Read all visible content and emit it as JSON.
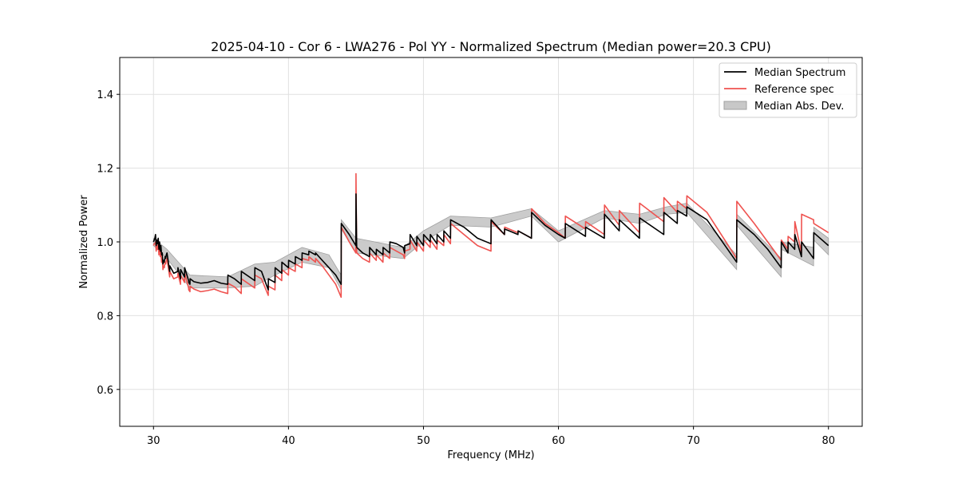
{
  "chart_data": {
    "type": "line",
    "title": "2025-04-10 - Cor 6 - LWA276 - Pol YY - Normalized Spectrum (Median power=20.3 CPU)",
    "xlabel": "Frequency (MHz)",
    "ylabel": "Normalized Power",
    "xlim": [
      27.5,
      82.5
    ],
    "ylim": [
      0.5,
      1.5
    ],
    "xticks": [
      30,
      40,
      50,
      60,
      70,
      80
    ],
    "xtick_labels": [
      "30",
      "40",
      "50",
      "60",
      "70",
      "80"
    ],
    "yticks": [
      0.6,
      0.8,
      1.0,
      1.2,
      1.4
    ],
    "ytick_labels": [
      "0.6",
      "0.8",
      "1.0",
      "1.2",
      "1.4"
    ],
    "grid": true,
    "legend_position": "top-right",
    "legend": {
      "median": "Median Spectrum",
      "reference": "Reference spec",
      "mad": "Median Abs. Dev."
    },
    "colors": {
      "median": "#000000",
      "reference": "#ef5350",
      "mad_fill": "#c8c8c8",
      "mad_edge": "#a0a0a0",
      "grid": "#e0e0e0"
    },
    "series": [
      {
        "name": "Median Spectrum",
        "x": [
          30.0,
          30.05,
          30.1,
          30.15,
          30.2,
          30.25,
          30.3,
          30.35,
          30.4,
          30.45,
          30.5,
          30.55,
          30.6,
          30.65,
          30.7,
          30.75,
          30.8,
          30.85,
          30.9,
          30.95,
          31.0,
          31.2,
          31.21,
          31.5,
          31.8,
          31.81,
          32.0,
          32.01,
          32.3,
          32.31,
          32.6,
          32.61,
          32.7,
          32.71,
          33.0,
          33.5,
          34.0,
          34.5,
          35.0,
          35.5,
          35.51,
          36.0,
          36.5,
          36.51,
          37.5,
          37.51,
          38.0,
          38.5,
          38.51,
          39.0,
          39.01,
          39.5,
          39.51,
          40.0,
          40.01,
          40.5,
          40.51,
          41.0,
          41.01,
          41.5,
          41.51,
          42.0,
          42.01,
          42.5,
          43.0,
          43.5,
          43.9,
          43.91,
          44.5,
          44.99,
          45.0,
          45.05,
          45.06,
          45.5,
          46.0,
          46.01,
          46.5,
          46.51,
          47.0,
          47.01,
          47.5,
          47.51,
          48.0,
          48.5,
          48.6,
          48.61,
          49.0,
          49.01,
          49.5,
          49.51,
          50.0,
          50.01,
          50.5,
          50.51,
          51.0,
          51.01,
          51.5,
          51.51,
          52.0,
          52.01,
          53.0,
          54.0,
          55.0,
          55.01,
          56.0,
          56.01,
          57.0,
          57.01,
          58.0,
          58.01,
          59.0,
          60.0,
          60.5,
          60.51,
          62.0,
          62.01,
          63.4,
          63.41,
          64.5,
          64.51,
          66.0,
          66.01,
          67.8,
          67.81,
          68.8,
          68.81,
          69.5,
          69.51,
          71.0,
          73.2,
          73.21,
          74.5,
          75.5,
          76.5,
          76.51,
          77.0,
          77.01,
          77.5,
          77.51,
          78.0,
          78.01,
          78.9,
          78.91,
          80.0
        ],
        "values": [
          1.0,
          1.005,
          1.01,
          1.02,
          0.99,
          1.005,
          0.995,
          1.01,
          0.98,
          1.0,
          0.975,
          0.99,
          0.965,
          0.97,
          0.94,
          0.95,
          0.945,
          0.96,
          0.955,
          0.965,
          0.97,
          0.92,
          0.935,
          0.915,
          0.92,
          0.93,
          0.9,
          0.925,
          0.905,
          0.93,
          0.895,
          0.89,
          0.885,
          0.9,
          0.892,
          0.888,
          0.89,
          0.895,
          0.888,
          0.885,
          0.91,
          0.9,
          0.885,
          0.92,
          0.895,
          0.93,
          0.92,
          0.87,
          0.9,
          0.89,
          0.93,
          0.915,
          0.945,
          0.93,
          0.95,
          0.94,
          0.96,
          0.95,
          0.97,
          0.965,
          0.975,
          0.965,
          0.97,
          0.95,
          0.93,
          0.91,
          0.885,
          1.05,
          1.02,
          0.99,
          1.13,
          0.99,
          0.985,
          0.97,
          0.96,
          0.985,
          0.965,
          0.98,
          0.965,
          0.985,
          0.97,
          1.0,
          0.995,
          0.985,
          0.97,
          0.99,
          0.995,
          1.02,
          0.99,
          1.015,
          0.99,
          1.02,
          1.0,
          1.02,
          0.995,
          1.02,
          1.0,
          1.03,
          1.01,
          1.06,
          1.04,
          1.01,
          0.995,
          1.06,
          1.02,
          1.035,
          1.02,
          1.03,
          1.01,
          1.08,
          1.045,
          1.02,
          1.01,
          1.05,
          1.015,
          1.04,
          1.01,
          1.075,
          1.03,
          1.06,
          1.01,
          1.065,
          1.02,
          1.08,
          1.05,
          1.085,
          1.07,
          1.095,
          1.06,
          0.945,
          1.06,
          1.02,
          0.98,
          0.93,
          1.0,
          0.97,
          1.0,
          0.98,
          1.02,
          0.96,
          1.0,
          0.955,
          1.025,
          0.99
        ]
      },
      {
        "name": "Reference spec",
        "x": [
          30.0,
          30.05,
          30.1,
          30.15,
          30.2,
          30.25,
          30.3,
          30.35,
          30.4,
          30.45,
          30.5,
          30.55,
          30.6,
          30.65,
          30.7,
          30.75,
          30.8,
          30.85,
          30.9,
          30.95,
          31.0,
          31.2,
          31.21,
          31.5,
          31.8,
          31.81,
          32.0,
          32.01,
          32.3,
          32.31,
          32.6,
          32.61,
          32.7,
          32.71,
          33.0,
          33.5,
          34.0,
          34.5,
          35.0,
          35.5,
          35.51,
          36.0,
          36.5,
          36.51,
          37.5,
          37.51,
          38.0,
          38.5,
          38.51,
          39.0,
          39.01,
          39.5,
          39.51,
          40.0,
          40.01,
          40.5,
          40.51,
          41.0,
          41.01,
          41.5,
          41.51,
          42.0,
          42.01,
          42.5,
          43.0,
          43.5,
          43.9,
          43.91,
          44.5,
          44.99,
          45.0,
          45.05,
          45.06,
          45.5,
          46.0,
          46.01,
          46.5,
          46.51,
          47.0,
          47.01,
          47.5,
          47.51,
          48.0,
          48.5,
          48.6,
          48.61,
          49.0,
          49.01,
          49.5,
          49.51,
          50.0,
          50.01,
          50.5,
          50.51,
          51.0,
          51.01,
          51.5,
          51.51,
          52.0,
          52.01,
          53.0,
          54.0,
          55.0,
          55.01,
          56.0,
          56.01,
          57.0,
          57.01,
          58.0,
          58.01,
          59.0,
          60.0,
          60.5,
          60.51,
          62.0,
          62.01,
          63.4,
          63.41,
          64.5,
          64.51,
          66.0,
          66.01,
          67.8,
          67.81,
          68.8,
          68.81,
          69.5,
          69.51,
          71.0,
          73.2,
          73.21,
          74.5,
          75.5,
          76.5,
          76.51,
          77.0,
          77.01,
          77.5,
          77.51,
          78.0,
          78.01,
          78.9,
          78.91,
          80.0
        ],
        "values": [
          0.99,
          0.995,
          0.995,
          1.0,
          0.975,
          0.99,
          0.98,
          0.995,
          0.965,
          0.985,
          0.96,
          0.975,
          0.945,
          0.955,
          0.925,
          0.935,
          0.93,
          0.945,
          0.94,
          0.95,
          0.955,
          0.905,
          0.92,
          0.9,
          0.905,
          0.915,
          0.885,
          0.91,
          0.89,
          0.915,
          0.875,
          0.87,
          0.865,
          0.88,
          0.872,
          0.865,
          0.868,
          0.872,
          0.865,
          0.86,
          0.888,
          0.878,
          0.86,
          0.9,
          0.875,
          0.91,
          0.9,
          0.855,
          0.88,
          0.87,
          0.91,
          0.895,
          0.925,
          0.91,
          0.93,
          0.92,
          0.94,
          0.93,
          0.955,
          0.95,
          0.96,
          0.945,
          0.955,
          0.935,
          0.91,
          0.885,
          0.85,
          1.04,
          1.0,
          0.97,
          1.185,
          0.975,
          0.97,
          0.955,
          0.945,
          0.97,
          0.95,
          0.965,
          0.945,
          0.97,
          0.955,
          0.985,
          0.975,
          0.965,
          0.955,
          0.975,
          0.98,
          1.005,
          0.975,
          1.0,
          0.975,
          1.005,
          0.985,
          1.005,
          0.98,
          1.005,
          0.99,
          1.02,
          0.995,
          1.05,
          1.02,
          0.99,
          0.975,
          1.055,
          1.02,
          1.04,
          1.025,
          1.03,
          1.01,
          1.09,
          1.05,
          1.025,
          1.01,
          1.07,
          1.035,
          1.055,
          1.02,
          1.1,
          1.045,
          1.085,
          1.025,
          1.105,
          1.055,
          1.12,
          1.08,
          1.11,
          1.09,
          1.125,
          1.08,
          0.955,
          1.11,
          1.05,
          1.0,
          0.95,
          1.005,
          0.98,
          1.015,
          1.0,
          1.055,
          0.97,
          1.075,
          1.06,
          1.05,
          1.025
        ]
      },
      {
        "name": "Median Abs. Dev.",
        "x": [
          30.0,
          31.0,
          32.7,
          35.5,
          37.5,
          39.0,
          41.0,
          43.0,
          43.9,
          43.91,
          45.0,
          48.5,
          50.0,
          52.0,
          55.0,
          58.0,
          60.0,
          63.4,
          66.0,
          68.0,
          69.5,
          69.51,
          73.2,
          73.21,
          76.5,
          76.51,
          78.9,
          78.91,
          80.0
        ],
        "upper": [
          1.01,
          0.98,
          0.91,
          0.905,
          0.94,
          0.945,
          0.985,
          0.965,
          0.91,
          1.06,
          1.01,
          0.985,
          1.03,
          1.07,
          1.065,
          1.09,
          1.03,
          1.085,
          1.075,
          1.095,
          1.105,
          1.105,
          0.965,
          1.075,
          0.955,
          1.0,
          0.985,
          1.04,
          1.01
        ],
        "lower": [
          0.99,
          0.955,
          0.875,
          0.875,
          0.88,
          0.91,
          0.945,
          0.93,
          0.87,
          1.035,
          0.97,
          0.955,
          1.0,
          1.045,
          1.04,
          1.07,
          1.0,
          1.065,
          1.05,
          1.075,
          1.08,
          1.08,
          0.925,
          1.045,
          0.905,
          0.98,
          0.935,
          1.005,
          0.965
        ]
      }
    ]
  }
}
